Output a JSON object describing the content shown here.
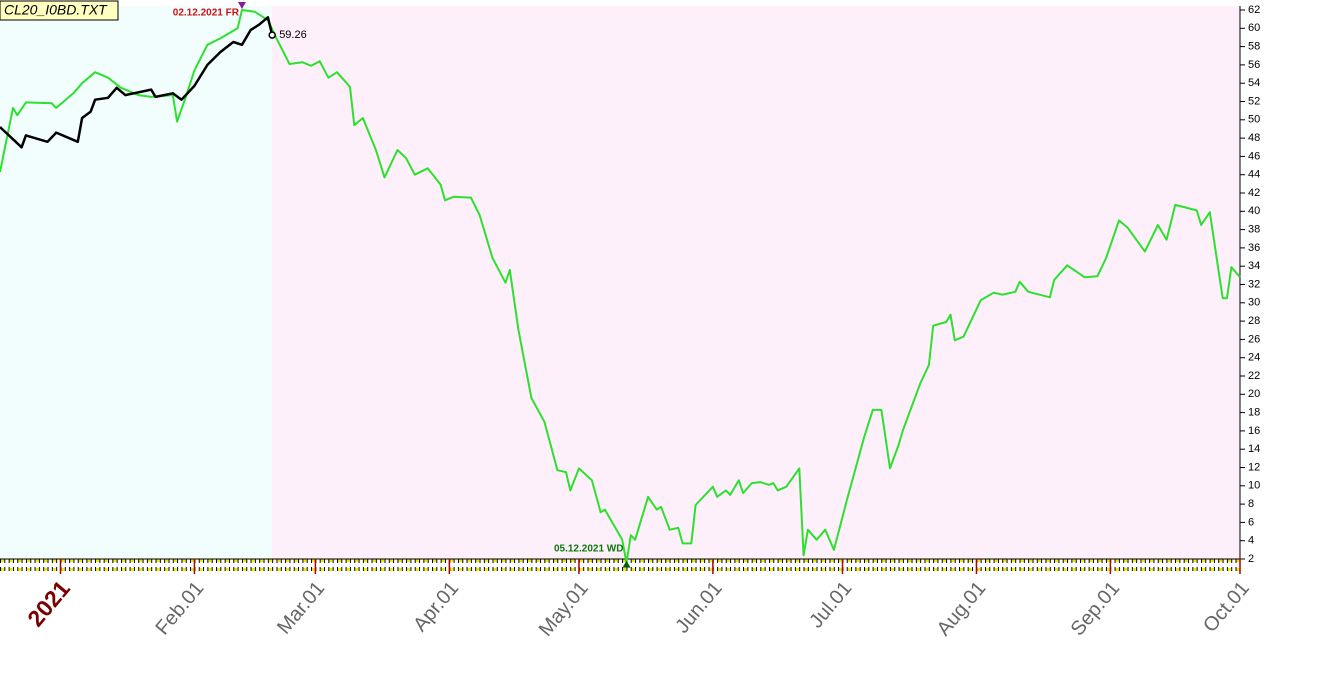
{
  "chart_data": {
    "type": "line",
    "title": "CL20_I0BD.TXT",
    "xlim": [
      -14,
      273
    ],
    "ylim": [
      2,
      62
    ],
    "xticks": [
      {
        "value": 0,
        "label": "2021"
      },
      {
        "value": 31,
        "label": "Feb.01"
      },
      {
        "value": 59,
        "label": "Mar.01"
      },
      {
        "value": 90,
        "label": "Apr.01"
      },
      {
        "value": 120,
        "label": "May.01"
      },
      {
        "value": 151,
        "label": "Jun.01"
      },
      {
        "value": 181,
        "label": "Jul.01"
      },
      {
        "value": 212,
        "label": "Aug.01"
      },
      {
        "value": 243,
        "label": "Sep.01"
      },
      {
        "value": 273,
        "label": "Oct.01"
      }
    ],
    "yticks": [
      2,
      4,
      6,
      8,
      10,
      12,
      14,
      16,
      18,
      20,
      22,
      24,
      26,
      28,
      30,
      32,
      34,
      36,
      38,
      40,
      42,
      44,
      46,
      48,
      50,
      52,
      54,
      56,
      58,
      60,
      62
    ],
    "series": [
      {
        "color": "#2ee02e",
        "x": [
          -14,
          -11,
          -10,
          -8,
          -2,
          -1,
          3,
          5,
          8,
          11,
          14,
          18,
          21,
          26,
          27,
          29,
          31,
          34,
          37,
          41,
          42,
          45,
          48,
          50,
          53,
          56,
          58,
          60,
          62,
          64,
          67,
          68,
          70,
          73,
          75,
          78,
          80,
          82,
          85,
          88,
          89,
          91,
          95,
          97,
          100,
          103,
          104,
          106,
          109,
          112,
          115,
          117,
          118,
          120,
          123,
          125,
          126,
          130,
          131,
          132,
          133,
          136,
          138,
          139,
          141,
          143,
          144,
          146,
          147,
          151,
          152,
          154,
          155,
          157,
          158,
          160,
          162,
          164,
          165,
          166,
          168,
          171,
          172,
          173,
          175,
          177,
          179,
          182,
          186,
          188,
          190,
          192,
          194,
          195,
          199,
          201,
          202,
          205,
          206,
          207,
          209,
          213,
          216,
          218,
          221,
          222,
          224,
          229,
          230,
          233,
          237,
          240,
          242,
          245,
          247,
          251,
          254,
          256,
          258,
          263,
          264,
          266,
          269,
          270,
          271,
          273
        ],
        "values": [
          44.3,
          51.3,
          50.5,
          51.9,
          51.8,
          51.3,
          52.9,
          54.0,
          55.2,
          54.6,
          53.5,
          52.7,
          52.5,
          52.7,
          49.8,
          52.5,
          55.4,
          58.2,
          58.9,
          60.0,
          62.0,
          61.8,
          60.9,
          58.9,
          56.1,
          56.3,
          55.9,
          56.4,
          54.6,
          55.2,
          53.6,
          49.4,
          50.2,
          46.7,
          43.7,
          46.7,
          45.8,
          44.0,
          44.7,
          42.9,
          41.2,
          41.6,
          41.5,
          39.6,
          34.9,
          32.2,
          33.6,
          27.0,
          19.6,
          17.0,
          11.7,
          11.5,
          9.5,
          11.9,
          10.6,
          7.1,
          7.4,
          4.1,
          1.6,
          4.6,
          4.1,
          8.8,
          7.4,
          7.7,
          5.2,
          5.4,
          3.7,
          3.7,
          7.9,
          9.9,
          8.8,
          9.5,
          9.0,
          10.6,
          9.2,
          10.3,
          10.4,
          10.1,
          10.3,
          9.5,
          9.9,
          11.9,
          2.4,
          5.2,
          4.1,
          5.2,
          3.0,
          8.4,
          15.3,
          18.3,
          18.3,
          11.9,
          14.5,
          16.1,
          21.2,
          23.2,
          27.5,
          27.9,
          28.7,
          25.9,
          26.3,
          30.3,
          31.1,
          30.9,
          31.2,
          32.3,
          31.2,
          30.6,
          32.5,
          34.1,
          32.8,
          32.9,
          34.9,
          39.0,
          38.2,
          35.6,
          38.5,
          36.9,
          40.7,
          40.1,
          38.5,
          39.9,
          30.5,
          30.5,
          33.9,
          32.8
        ]
      },
      {
        "color": "#000000",
        "x": [
          -14,
          -9,
          -8,
          -3,
          -1,
          4,
          5,
          7,
          8,
          11,
          13,
          15,
          21,
          22,
          26,
          28,
          31,
          34,
          37,
          40,
          42,
          44,
          46,
          48,
          49
        ],
        "values": [
          49.2,
          47.0,
          48.3,
          47.6,
          48.6,
          47.6,
          50.2,
          50.9,
          52.2,
          52.4,
          53.5,
          52.7,
          53.3,
          52.5,
          52.9,
          52.2,
          53.7,
          56.0,
          57.4,
          58.5,
          58.2,
          59.8,
          60.4,
          61.2,
          59.26
        ]
      }
    ],
    "annotations": [
      {
        "text": "02.12.2021 FR",
        "x": 42,
        "y": 62,
        "color": "#d01010"
      },
      {
        "text": "05.12.2021 WD",
        "x": 131,
        "y": 1.6,
        "color": "#0a7a0a"
      }
    ]
  }
}
